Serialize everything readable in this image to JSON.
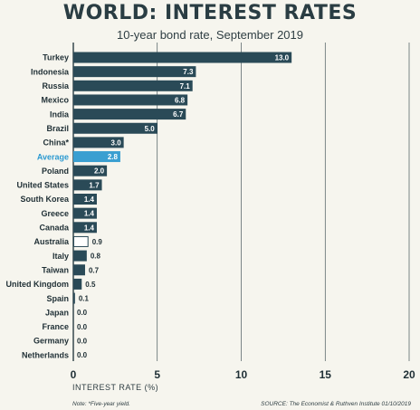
{
  "chart_data": {
    "type": "bar",
    "orientation": "horizontal",
    "title": "WORLD: INTEREST RATES",
    "subtitle": "10-year bond rate, September 2019",
    "xlabel": "INTEREST RATE (%)",
    "xlim": [
      0,
      20
    ],
    "xticks": [
      "0",
      "5",
      "10",
      "15",
      "20"
    ],
    "grid": "vertical",
    "categories": [
      "Turkey",
      "Indonesia",
      "Russia",
      "Mexico",
      "India",
      "Brazil",
      "China*",
      "Average",
      "Poland",
      "United States",
      "South Korea",
      "Greece",
      "Canada",
      "Australia",
      "Italy",
      "Taiwan",
      "United Kingdom",
      "Spain",
      "Japan",
      "France",
      "Germany",
      "Netherlands"
    ],
    "values": [
      13.0,
      7.3,
      7.1,
      6.8,
      6.7,
      5.0,
      3.0,
      2.8,
      2.0,
      1.7,
      1.4,
      1.4,
      1.4,
      0.9,
      0.8,
      0.7,
      0.5,
      0.1,
      0.0,
      0.0,
      0.0,
      0.0
    ],
    "value_labels": [
      "13.0",
      "7.3",
      "7.1",
      "6.8",
      "6.7",
      "5.0",
      "3.0",
      "2.8",
      "2.0",
      "1.7",
      "1.4",
      "1.4",
      "1.4",
      "0.9",
      "0.8",
      "0.7",
      "0.5",
      "0.1",
      "0.0",
      "0.0",
      "0.0",
      "0.0"
    ],
    "highlight": "Average",
    "outlined": "Australia",
    "note": "Note: *Five-year yield.",
    "source": "SOURCE: The Economist & Ruthven Institute 01/10/2019",
    "colors": {
      "bar": "#2a4a57",
      "highlight": "#3a9fd1",
      "outline": "#2a4a57",
      "background": "#f6f5ee",
      "grid": "#2a3d43"
    }
  }
}
